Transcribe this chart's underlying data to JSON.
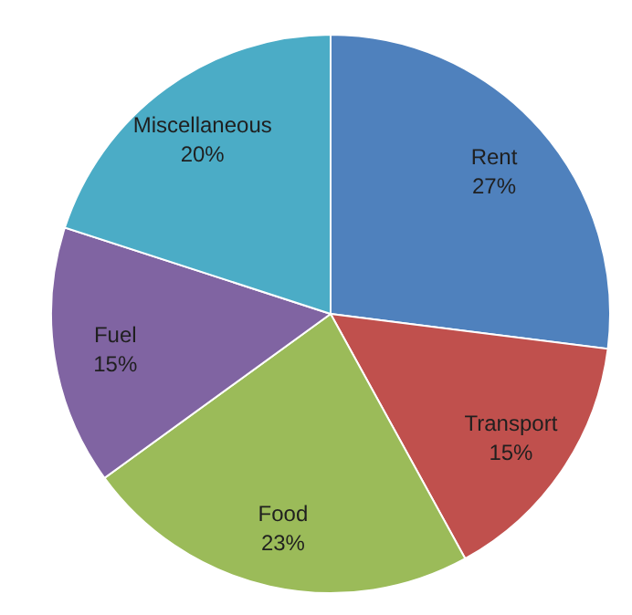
{
  "chart_data": {
    "type": "pie",
    "categories": [
      "Rent",
      "Transport",
      "Food",
      "Fuel",
      "Miscellaneous"
    ],
    "values": [
      27,
      15,
      23,
      15,
      20
    ],
    "value_labels": [
      "27%",
      "15%",
      "23%",
      "15%",
      "20%"
    ],
    "colors": [
      "#4f81bd",
      "#c0504d",
      "#9bbb59",
      "#8064a2",
      "#4bacc6"
    ]
  }
}
